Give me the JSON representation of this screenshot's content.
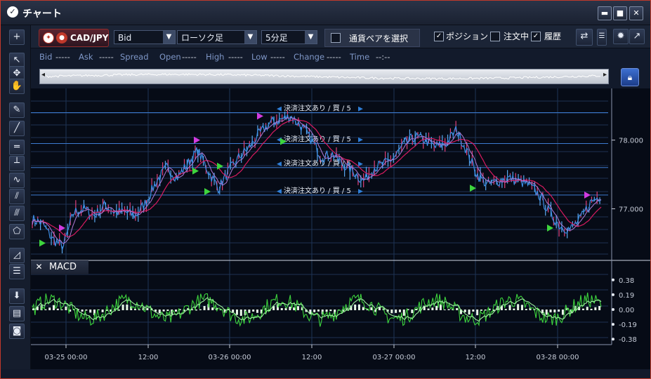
{
  "window": {
    "title": "チャート",
    "logo": "logo-icon",
    "minimize": "▬",
    "maximize": "■",
    "close": "✕"
  },
  "sidebar": {
    "items": [
      {
        "name": "add-button",
        "glyph": "+"
      },
      {
        "name": "cursor-icon",
        "glyph": "↖"
      },
      {
        "name": "crosshair-icon",
        "glyph": "✥"
      },
      {
        "name": "hand-icon",
        "glyph": "✋"
      },
      {
        "name": "pencil-icon",
        "glyph": "✎"
      },
      {
        "name": "trendline-icon",
        "glyph": "╱"
      },
      {
        "name": "horizontal-line-icon",
        "glyph": "═"
      },
      {
        "name": "vertical-line-icon",
        "glyph": "┴"
      },
      {
        "name": "wave-icon",
        "glyph": "∿"
      },
      {
        "name": "channel-icon",
        "glyph": "⫽"
      },
      {
        "name": "parallel-lines-icon",
        "glyph": "⫻"
      },
      {
        "name": "pentagon-icon",
        "glyph": "⬠"
      },
      {
        "name": "fibonacci-fan-icon",
        "glyph": "◿"
      },
      {
        "name": "fibonacci-retracement-icon",
        "glyph": "☰"
      },
      {
        "name": "delete-drawing-icon",
        "glyph": "⬇"
      },
      {
        "name": "table-icon",
        "glyph": "▤"
      },
      {
        "name": "camera-icon",
        "glyph": "◙"
      }
    ]
  },
  "toolbar": {
    "pair": "CAD/JPY",
    "price_type": "Bid",
    "chart_type": "ローソク足",
    "timeframe": "5分足",
    "pair_select": "通貨ペアを選択",
    "position_label": "ポジション",
    "position_checked": true,
    "order_label": "注文中",
    "order_checked": false,
    "history_label": "履歴",
    "history_checked": true,
    "swap_icon": "swap-icon",
    "more_icon": "menu-icon",
    "settings_icon": "gear-icon",
    "popout_icon": "popout-icon"
  },
  "quote": {
    "bid_label": "Bid",
    "bid": "-----",
    "ask_label": "Ask",
    "ask": "-----",
    "spread_label": "Spread",
    "open_label": "Open",
    "open": "-----",
    "high_label": "High",
    "high": "-----",
    "low_label": "Low",
    "low": "-----",
    "change_label": "Change",
    "change": "-----",
    "time_label": "Time",
    "time": "--:--"
  },
  "navigator": {
    "left_arrow": "◂",
    "right_arrow": "▸",
    "lock": "lock-icon"
  },
  "orders": [
    {
      "text": "決済注文あり / 買 / 5",
      "price": 78.4
    },
    {
      "text": "決済注文あり / 買 / 5",
      "price": 77.95
    },
    {
      "text": "決済注文あり / 買 / 5",
      "price": 77.6
    },
    {
      "text": "決済注文あり / 買 / 5",
      "price": 77.2
    }
  ],
  "colors": {
    "price": "#2f7fd8",
    "ma_red": "#d81b60",
    "macd_line": "#3dd43d",
    "signal": "#9cf09c",
    "hist": "#e8f8e8",
    "accent": "#c0392b"
  },
  "chart_data": {
    "type": "line",
    "price_axis": {
      "ticks": [
        78.0,
        77.0
      ],
      "range": [
        76.3,
        78.65
      ]
    },
    "macd_axis": {
      "ticks": [
        0.38,
        0.19,
        0.0,
        -0.19,
        -0.38
      ],
      "range": [
        -0.45,
        0.45
      ]
    },
    "x_ticks": [
      "03-25 00:00",
      "12:00",
      "03-26 00:00",
      "12:00",
      "03-27 00:00",
      "12:00",
      "03-28 00:00"
    ],
    "series_price": [
      76.85,
      76.78,
      76.55,
      76.45,
      76.95,
      77.0,
      76.9,
      77.05,
      76.95,
      76.95,
      76.9,
      77.1,
      77.4,
      77.6,
      77.45,
      77.65,
      77.85,
      77.55,
      77.3,
      77.55,
      77.75,
      77.9,
      78.1,
      78.25,
      78.3,
      78.35,
      78.2,
      78.0,
      77.75,
      77.8,
      77.65,
      77.55,
      77.4,
      77.6,
      77.65,
      77.75,
      77.95,
      78.05,
      78.0,
      77.9,
      77.95,
      78.15,
      77.85,
      77.5,
      77.35,
      77.4,
      77.45,
      77.4,
      77.35,
      77.2,
      76.95,
      76.75,
      76.7,
      76.85,
      77.1,
      77.2
    ]
  },
  "indicator": {
    "name": "MACD",
    "close": "✕"
  }
}
